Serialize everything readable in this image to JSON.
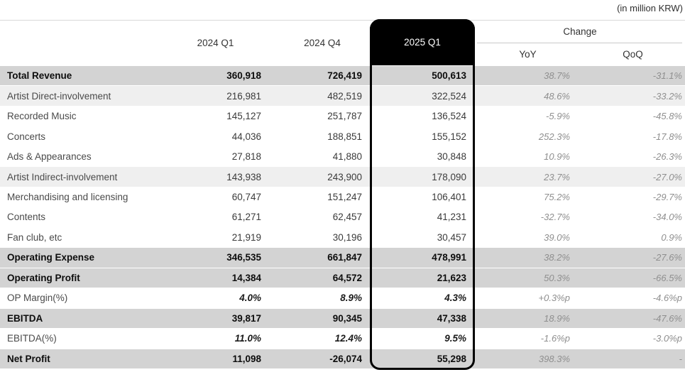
{
  "unit_note": "(in million KRW)",
  "header": {
    "col_2024_q1": "2024 Q1",
    "col_2024_q4": "2024 Q4",
    "col_2025_q1": "2025 Q1",
    "change_group": "Change",
    "col_yoy": "YoY",
    "col_qoq": "QoQ"
  },
  "colors": {
    "highlight_bg": "#000000",
    "highlight_text": "#ffffff",
    "total_row_bg": "#d3d3d3",
    "shade_row_bg": "#efefef"
  },
  "rows": [
    {
      "label": "Total Revenue",
      "q1_2024": "360,918",
      "q4_2024": "726,419",
      "q1_2025": "500,613",
      "yoy": "38.7%",
      "qoq": "-31.1%",
      "style": "total"
    },
    {
      "label": "Artist Direct-involvement",
      "q1_2024": "216,981",
      "q4_2024": "482,519",
      "q1_2025": "322,524",
      "yoy": "48.6%",
      "qoq": "-33.2%",
      "style": "shade"
    },
    {
      "label": "Recorded Music",
      "q1_2024": "145,127",
      "q4_2024": "251,787",
      "q1_2025": "136,524",
      "yoy": "-5.9%",
      "qoq": "-45.8%",
      "style": "item"
    },
    {
      "label": "Concerts",
      "q1_2024": "44,036",
      "q4_2024": "188,851",
      "q1_2025": "155,152",
      "yoy": "252.3%",
      "qoq": "-17.8%",
      "style": "item"
    },
    {
      "label": "Ads & Appearances",
      "q1_2024": "27,818",
      "q4_2024": "41,880",
      "q1_2025": "30,848",
      "yoy": "10.9%",
      "qoq": "-26.3%",
      "style": "item"
    },
    {
      "label": "Artist Indirect-involvement",
      "q1_2024": "143,938",
      "q4_2024": "243,900",
      "q1_2025": "178,090",
      "yoy": "23.7%",
      "qoq": "-27.0%",
      "style": "shade"
    },
    {
      "label": "Merchandising and licensing",
      "q1_2024": "60,747",
      "q4_2024": "151,247",
      "q1_2025": "106,401",
      "yoy": "75.2%",
      "qoq": "-29.7%",
      "style": "item"
    },
    {
      "label": "Contents",
      "q1_2024": "61,271",
      "q4_2024": "62,457",
      "q1_2025": "41,231",
      "yoy": "-32.7%",
      "qoq": "-34.0%",
      "style": "item"
    },
    {
      "label": "Fan club, etc",
      "q1_2024": "21,919",
      "q4_2024": "30,196",
      "q1_2025": "30,457",
      "yoy": "39.0%",
      "qoq": "0.9%",
      "style": "item"
    },
    {
      "label": "Operating Expense",
      "q1_2024": "346,535",
      "q4_2024": "661,847",
      "q1_2025": "478,991",
      "yoy": "38.2%",
      "qoq": "-27.6%",
      "style": "total"
    },
    {
      "label": "Operating Profit",
      "q1_2024": "14,384",
      "q4_2024": "64,572",
      "q1_2025": "21,623",
      "yoy": "50.3%",
      "qoq": "-66.5%",
      "style": "total"
    },
    {
      "label": "OP Margin(%)",
      "q1_2024": "4.0%",
      "q4_2024": "8.9%",
      "q1_2025": "4.3%",
      "yoy": "+0.3%p",
      "qoq": "-4.6%p",
      "style": "pct"
    },
    {
      "label": "EBITDA",
      "q1_2024": "39,817",
      "q4_2024": "90,345",
      "q1_2025": "47,338",
      "yoy": "18.9%",
      "qoq": "-47.6%",
      "style": "total"
    },
    {
      "label": "EBITDA(%)",
      "q1_2024": "11.0%",
      "q4_2024": "12.4%",
      "q1_2025": "9.5%",
      "yoy": "-1.6%p",
      "qoq": "-3.0%p",
      "style": "pct"
    },
    {
      "label": "Net Profit",
      "q1_2024": "11,098",
      "q4_2024": "-26,074",
      "q1_2025": "55,298",
      "yoy": "398.3%",
      "qoq": "-",
      "style": "total"
    }
  ]
}
